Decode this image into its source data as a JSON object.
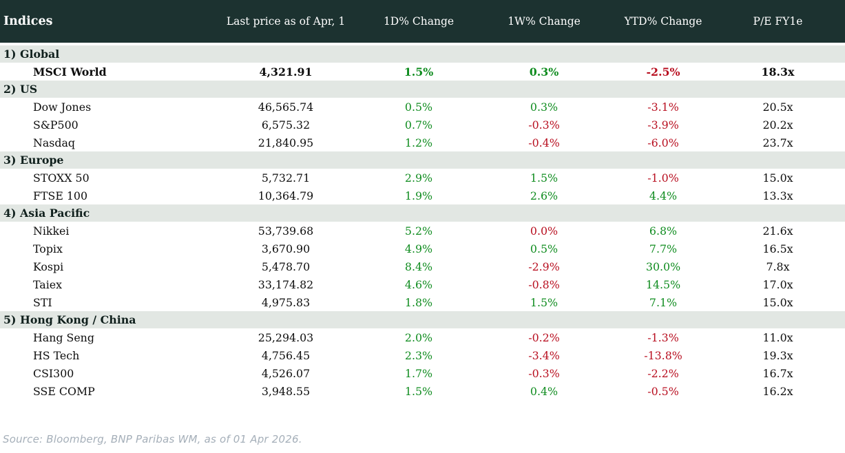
{
  "footer": {
    "source": "Source: Bloomberg, BNP Paribas WM, as of 01 Apr 2026."
  },
  "colors": {
    "header_bg": "#1c3230",
    "section_bg": "#e2e7e3",
    "positive_green": "#0f8c1f",
    "negative_red": "#b80e1f"
  },
  "chart_data": {
    "type": "table",
    "title": "Indices",
    "columns": [
      "Last price as of Apr, 1",
      "1D% Change",
      "1W% Change",
      "YTD% Change",
      "P/E FY1e"
    ],
    "sections": [
      {
        "label": "1) Global",
        "rows": [
          {
            "name": "MSCI World",
            "bold": true,
            "last_price": "4,321.91",
            "changes": [
              {
                "value": "1.5%",
                "tone": "up"
              },
              {
                "value": "0.3%",
                "tone": "up"
              },
              {
                "value": "-2.5%",
                "tone": "down"
              }
            ],
            "pe": "18.3x"
          }
        ]
      },
      {
        "label": "2) US",
        "rows": [
          {
            "name": "Dow Jones",
            "bold": false,
            "last_price": "46,565.74",
            "changes": [
              {
                "value": "0.5%",
                "tone": "up"
              },
              {
                "value": "0.3%",
                "tone": "up"
              },
              {
                "value": "-3.1%",
                "tone": "down"
              }
            ],
            "pe": "20.5x"
          },
          {
            "name": "S&P500",
            "bold": false,
            "last_price": "6,575.32",
            "changes": [
              {
                "value": "0.7%",
                "tone": "up"
              },
              {
                "value": "-0.3%",
                "tone": "down"
              },
              {
                "value": "-3.9%",
                "tone": "down"
              }
            ],
            "pe": "20.2x"
          },
          {
            "name": "Nasdaq",
            "bold": false,
            "last_price": "21,840.95",
            "changes": [
              {
                "value": "1.2%",
                "tone": "up"
              },
              {
                "value": "-0.4%",
                "tone": "down"
              },
              {
                "value": "-6.0%",
                "tone": "down"
              }
            ],
            "pe": "23.7x"
          }
        ]
      },
      {
        "label": "3) Europe",
        "rows": [
          {
            "name": "STOXX 50",
            "bold": false,
            "last_price": "5,732.71",
            "changes": [
              {
                "value": "2.9%",
                "tone": "up"
              },
              {
                "value": "1.5%",
                "tone": "up"
              },
              {
                "value": "-1.0%",
                "tone": "down"
              }
            ],
            "pe": "15.0x"
          },
          {
            "name": "FTSE 100",
            "bold": false,
            "last_price": "10,364.79",
            "changes": [
              {
                "value": "1.9%",
                "tone": "up"
              },
              {
                "value": "2.6%",
                "tone": "up"
              },
              {
                "value": "4.4%",
                "tone": "up"
              }
            ],
            "pe": "13.3x"
          }
        ]
      },
      {
        "label": "4) Asia Pacific",
        "rows": [
          {
            "name": "Nikkei",
            "bold": false,
            "last_price": "53,739.68",
            "changes": [
              {
                "value": "5.2%",
                "tone": "up"
              },
              {
                "value": "0.0%",
                "tone": "down"
              },
              {
                "value": "6.8%",
                "tone": "up"
              }
            ],
            "pe": "21.6x"
          },
          {
            "name": "Topix",
            "bold": false,
            "last_price": "3,670.90",
            "changes": [
              {
                "value": "4.9%",
                "tone": "up"
              },
              {
                "value": "0.5%",
                "tone": "up"
              },
              {
                "value": "7.7%",
                "tone": "up"
              }
            ],
            "pe": "16.5x"
          },
          {
            "name": "Kospi",
            "bold": false,
            "last_price": "5,478.70",
            "changes": [
              {
                "value": "8.4%",
                "tone": "up"
              },
              {
                "value": "-2.9%",
                "tone": "down"
              },
              {
                "value": "30.0%",
                "tone": "up"
              }
            ],
            "pe": "7.8x"
          },
          {
            "name": "Taiex",
            "bold": false,
            "last_price": "33,174.82",
            "changes": [
              {
                "value": "4.6%",
                "tone": "up"
              },
              {
                "value": "-0.8%",
                "tone": "down"
              },
              {
                "value": "14.5%",
                "tone": "up"
              }
            ],
            "pe": "17.0x"
          },
          {
            "name": "STI",
            "bold": false,
            "last_price": "4,975.83",
            "changes": [
              {
                "value": "1.8%",
                "tone": "up"
              },
              {
                "value": "1.5%",
                "tone": "up"
              },
              {
                "value": "7.1%",
                "tone": "up"
              }
            ],
            "pe": "15.0x"
          }
        ]
      },
      {
        "label": "5) Hong Kong / China",
        "rows": [
          {
            "name": "Hang Seng",
            "bold": false,
            "last_price": "25,294.03",
            "changes": [
              {
                "value": "2.0%",
                "tone": "up"
              },
              {
                "value": "-0.2%",
                "tone": "down"
              },
              {
                "value": "-1.3%",
                "tone": "down"
              }
            ],
            "pe": "11.0x"
          },
          {
            "name": "HS Tech",
            "bold": false,
            "last_price": "4,756.45",
            "changes": [
              {
                "value": "2.3%",
                "tone": "up"
              },
              {
                "value": "-3.4%",
                "tone": "down"
              },
              {
                "value": "-13.8%",
                "tone": "down"
              }
            ],
            "pe": "19.3x"
          },
          {
            "name": "CSI300",
            "bold": false,
            "last_price": "4,526.07",
            "changes": [
              {
                "value": "1.7%",
                "tone": "up"
              },
              {
                "value": "-0.3%",
                "tone": "down"
              },
              {
                "value": "-2.2%",
                "tone": "down"
              }
            ],
            "pe": "16.7x"
          },
          {
            "name": "SSE COMP",
            "bold": false,
            "last_price": "3,948.55",
            "changes": [
              {
                "value": "1.5%",
                "tone": "up"
              },
              {
                "value": "0.4%",
                "tone": "up"
              },
              {
                "value": "-0.5%",
                "tone": "down"
              }
            ],
            "pe": "16.2x"
          }
        ]
      }
    ]
  }
}
